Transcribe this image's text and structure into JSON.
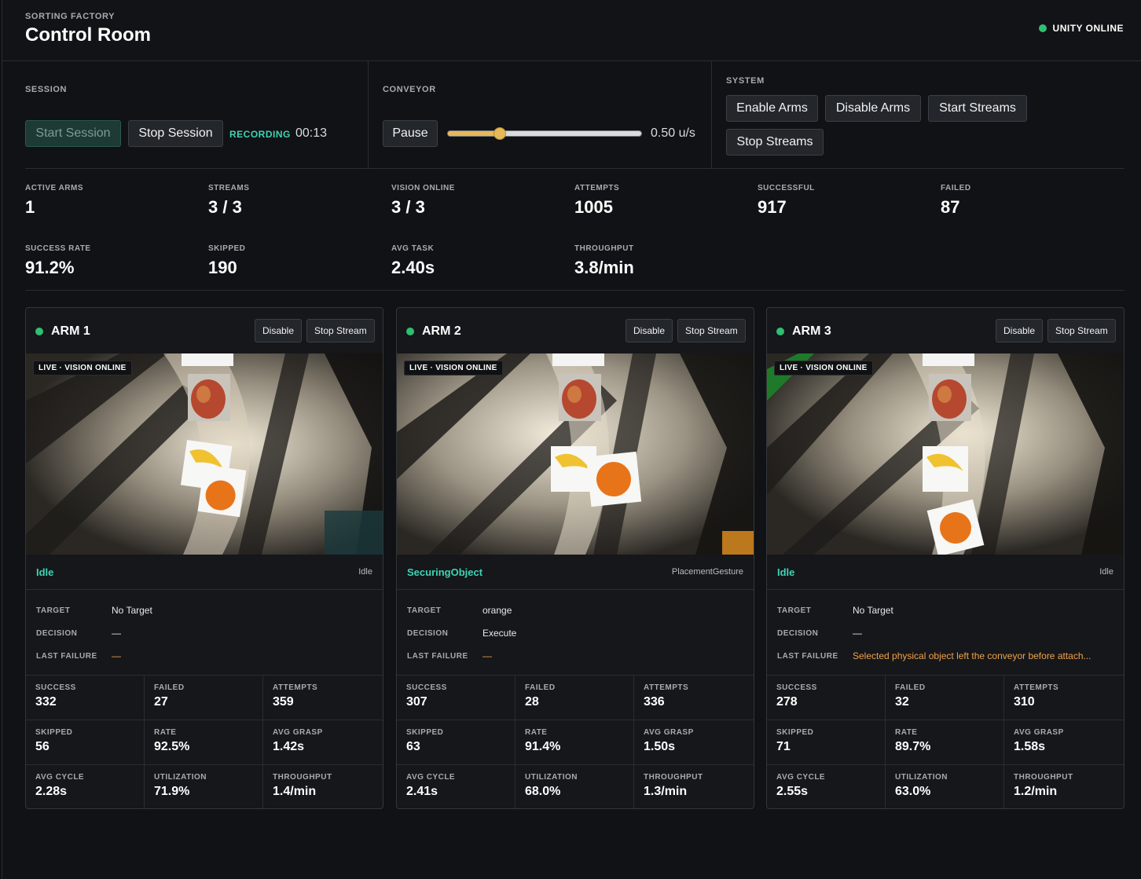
{
  "header": {
    "kicker": "SORTING FACTORY",
    "title": "Control Room",
    "status": "UNITY ONLINE",
    "status_color": "#2fbf71"
  },
  "session": {
    "label": "SESSION",
    "start_label": "Start Session",
    "stop_label": "Stop Session",
    "recording_label": "RECORDING",
    "timer": "00:13"
  },
  "conveyor": {
    "label": "CONVEYOR",
    "pause_label": "Pause",
    "speed_text": "0.50 u/s",
    "slider_fraction": 0.27
  },
  "system": {
    "label": "SYSTEM",
    "enable_arms": "Enable Arms",
    "disable_arms": "Disable Arms",
    "start_streams": "Start Streams",
    "stop_streams": "Stop Streams"
  },
  "stats": [
    {
      "label": "ACTIVE ARMS",
      "value": "1"
    },
    {
      "label": "STREAMS",
      "value": "3 / 3"
    },
    {
      "label": "VISION ONLINE",
      "value": "3 / 3"
    },
    {
      "label": "ATTEMPTS",
      "value": "1005"
    },
    {
      "label": "SUCCESSFUL",
      "value": "917"
    },
    {
      "label": "FAILED",
      "value": "87"
    },
    {
      "label": "SUCCESS RATE",
      "value": "91.2%"
    },
    {
      "label": "SKIPPED",
      "value": "190"
    },
    {
      "label": "AVG TASK",
      "value": "2.40s"
    },
    {
      "label": "THROUGHPUT",
      "value": "3.8/min"
    }
  ],
  "arms": [
    {
      "name": "ARM 1",
      "disable_label": "Disable",
      "stop_stream_label": "Stop Stream",
      "live_badge": "LIVE · VISION ONLINE",
      "state": "Idle",
      "gesture": "Idle",
      "target_label": "TARGET",
      "target": "No Target",
      "decision_label": "DECISION",
      "decision": "—",
      "last_failure_label": "LAST FAILURE",
      "last_failure": "—",
      "metrics": [
        {
          "label": "SUCCESS",
          "value": "332"
        },
        {
          "label": "FAILED",
          "value": "27"
        },
        {
          "label": "ATTEMPTS",
          "value": "359"
        },
        {
          "label": "SKIPPED",
          "value": "56"
        },
        {
          "label": "RATE",
          "value": "92.5%"
        },
        {
          "label": "AVG GRASP",
          "value": "1.42s"
        },
        {
          "label": "AVG CYCLE",
          "value": "2.28s"
        },
        {
          "label": "UTILIZATION",
          "value": "71.9%"
        },
        {
          "label": "THROUGHPUT",
          "value": "1.4/min"
        }
      ]
    },
    {
      "name": "ARM 2",
      "disable_label": "Disable",
      "stop_stream_label": "Stop Stream",
      "live_badge": "LIVE · VISION ONLINE",
      "state": "SecuringObject",
      "gesture": "PlacementGesture",
      "target_label": "TARGET",
      "target": "orange",
      "decision_label": "DECISION",
      "decision": "Execute",
      "last_failure_label": "LAST FAILURE",
      "last_failure": "—",
      "metrics": [
        {
          "label": "SUCCESS",
          "value": "307"
        },
        {
          "label": "FAILED",
          "value": "28"
        },
        {
          "label": "ATTEMPTS",
          "value": "336"
        },
        {
          "label": "SKIPPED",
          "value": "63"
        },
        {
          "label": "RATE",
          "value": "91.4%"
        },
        {
          "label": "AVG GRASP",
          "value": "1.50s"
        },
        {
          "label": "AVG CYCLE",
          "value": "2.41s"
        },
        {
          "label": "UTILIZATION",
          "value": "68.0%"
        },
        {
          "label": "THROUGHPUT",
          "value": "1.3/min"
        }
      ]
    },
    {
      "name": "ARM 3",
      "disable_label": "Disable",
      "stop_stream_label": "Stop Stream",
      "live_badge": "LIVE · VISION ONLINE",
      "state": "Idle",
      "gesture": "Idle",
      "target_label": "TARGET",
      "target": "No Target",
      "decision_label": "DECISION",
      "decision": "—",
      "last_failure_label": "LAST FAILURE",
      "last_failure": "Selected physical object left the conveyor before attach...",
      "metrics": [
        {
          "label": "SUCCESS",
          "value": "278"
        },
        {
          "label": "FAILED",
          "value": "32"
        },
        {
          "label": "ATTEMPTS",
          "value": "310"
        },
        {
          "label": "SKIPPED",
          "value": "71"
        },
        {
          "label": "RATE",
          "value": "89.7%"
        },
        {
          "label": "AVG GRASP",
          "value": "1.58s"
        },
        {
          "label": "AVG CYCLE",
          "value": "2.55s"
        },
        {
          "label": "UTILIZATION",
          "value": "63.0%"
        },
        {
          "label": "THROUGHPUT",
          "value": "1.2/min"
        }
      ]
    }
  ]
}
